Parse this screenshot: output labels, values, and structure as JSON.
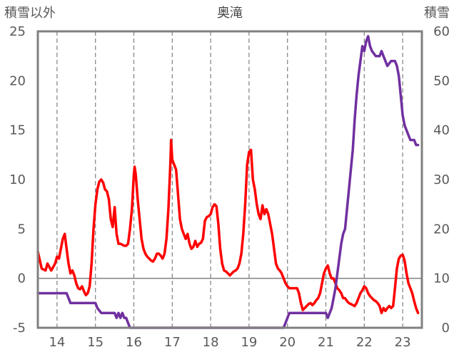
{
  "chart_data": {
    "type": "line",
    "title": "奥滝",
    "left_axis_label": "積雪以外",
    "right_axis_label": "積雪",
    "left_ylim": [
      -5,
      25
    ],
    "left_ticks": [
      "25",
      "20",
      "15",
      "10",
      "5",
      "0",
      "-5"
    ],
    "right_ylim": [
      0,
      60
    ],
    "right_ticks": [
      "60",
      "50",
      "40",
      "30",
      "20",
      "10",
      "0"
    ],
    "xlim": [
      13.5,
      23.5
    ],
    "x_tick_labels": [
      "14",
      "15",
      "16",
      "17",
      "18",
      "19",
      "20",
      "21",
      "22",
      "23"
    ],
    "grid": "vertical dashed at each day",
    "zero_line": 0,
    "colors": {
      "series1": "#ff0000",
      "series2": "#7030a0",
      "frame": "#808080",
      "grid": "#7f7f7f"
    },
    "series": [
      {
        "axis": "left",
        "color": "#ff0000",
        "points": [
          [
            13.5,
            2.7
          ],
          [
            13.6,
            1.0
          ],
          [
            13.7,
            0.8
          ],
          [
            13.75,
            1.5
          ],
          [
            13.85,
            0.8
          ],
          [
            13.95,
            1.5
          ],
          [
            14.0,
            2.2
          ],
          [
            14.05,
            2.0
          ],
          [
            14.1,
            3.0
          ],
          [
            14.15,
            4.0
          ],
          [
            14.2,
            4.5
          ],
          [
            14.25,
            3.0
          ],
          [
            14.3,
            1.5
          ],
          [
            14.35,
            0.5
          ],
          [
            14.4,
            0.8
          ],
          [
            14.45,
            0.3
          ],
          [
            14.5,
            -0.5
          ],
          [
            14.55,
            -1.0
          ],
          [
            14.6,
            -1.1
          ],
          [
            14.65,
            -0.8
          ],
          [
            14.7,
            -1.3
          ],
          [
            14.75,
            -1.7
          ],
          [
            14.8,
            -1.5
          ],
          [
            14.85,
            -0.8
          ],
          [
            14.9,
            1.5
          ],
          [
            14.95,
            5.0
          ],
          [
            15.0,
            7.5
          ],
          [
            15.05,
            9.0
          ],
          [
            15.1,
            9.8
          ],
          [
            15.15,
            10.0
          ],
          [
            15.2,
            9.7
          ],
          [
            15.25,
            9.0
          ],
          [
            15.3,
            8.8
          ],
          [
            15.35,
            8.0
          ],
          [
            15.4,
            6.0
          ],
          [
            15.45,
            5.2
          ],
          [
            15.5,
            7.2
          ],
          [
            15.55,
            4.5
          ],
          [
            15.6,
            3.5
          ],
          [
            15.65,
            3.5
          ],
          [
            15.7,
            3.4
          ],
          [
            15.75,
            3.3
          ],
          [
            15.8,
            3.3
          ],
          [
            15.85,
            3.5
          ],
          [
            15.9,
            5.0
          ],
          [
            15.95,
            7.0
          ],
          [
            16.0,
            10.5
          ],
          [
            16.02,
            11.3
          ],
          [
            16.05,
            10.5
          ],
          [
            16.1,
            8.0
          ],
          [
            16.15,
            6.0
          ],
          [
            16.2,
            4.0
          ],
          [
            16.25,
            3.0
          ],
          [
            16.3,
            2.5
          ],
          [
            16.35,
            2.2
          ],
          [
            16.4,
            2.0
          ],
          [
            16.45,
            1.8
          ],
          [
            16.5,
            1.7
          ],
          [
            16.55,
            2.0
          ],
          [
            16.6,
            2.5
          ],
          [
            16.65,
            2.5
          ],
          [
            16.7,
            2.3
          ],
          [
            16.75,
            2.0
          ],
          [
            16.8,
            2.5
          ],
          [
            16.85,
            4.0
          ],
          [
            16.9,
            7.0
          ],
          [
            16.95,
            11.5
          ],
          [
            16.97,
            14.0
          ],
          [
            17.0,
            12.0
          ],
          [
            17.05,
            11.5
          ],
          [
            17.1,
            11.0
          ],
          [
            17.15,
            8.5
          ],
          [
            17.2,
            6.0
          ],
          [
            17.25,
            5.0
          ],
          [
            17.3,
            4.5
          ],
          [
            17.35,
            4.0
          ],
          [
            17.4,
            4.5
          ],
          [
            17.45,
            3.5
          ],
          [
            17.5,
            3.0
          ],
          [
            17.55,
            3.2
          ],
          [
            17.6,
            3.8
          ],
          [
            17.65,
            3.2
          ],
          [
            17.7,
            3.5
          ],
          [
            17.75,
            3.6
          ],
          [
            17.8,
            4.0
          ],
          [
            17.85,
            5.8
          ],
          [
            17.9,
            6.2
          ],
          [
            17.95,
            6.3
          ],
          [
            18.0,
            6.5
          ],
          [
            18.05,
            7.2
          ],
          [
            18.1,
            7.5
          ],
          [
            18.15,
            7.3
          ],
          [
            18.2,
            5.5
          ],
          [
            18.25,
            3.0
          ],
          [
            18.3,
            1.5
          ],
          [
            18.35,
            0.8
          ],
          [
            18.4,
            0.7
          ],
          [
            18.45,
            0.5
          ],
          [
            18.5,
            0.3
          ],
          [
            18.55,
            0.5
          ],
          [
            18.6,
            0.7
          ],
          [
            18.65,
            0.8
          ],
          [
            18.7,
            1.0
          ],
          [
            18.75,
            1.5
          ],
          [
            18.8,
            2.5
          ],
          [
            18.85,
            4.5
          ],
          [
            18.9,
            7.5
          ],
          [
            18.95,
            11.5
          ],
          [
            19.0,
            12.8
          ],
          [
            19.05,
            13.0
          ],
          [
            19.1,
            10.0
          ],
          [
            19.15,
            9.0
          ],
          [
            19.2,
            7.5
          ],
          [
            19.25,
            6.5
          ],
          [
            19.3,
            6.0
          ],
          [
            19.35,
            7.4
          ],
          [
            19.4,
            6.5
          ],
          [
            19.45,
            7.0
          ],
          [
            19.5,
            6.5
          ],
          [
            19.55,
            5.5
          ],
          [
            19.6,
            4.5
          ],
          [
            19.65,
            3.0
          ],
          [
            19.7,
            1.5
          ],
          [
            19.75,
            1.0
          ],
          [
            19.8,
            0.8
          ],
          [
            19.85,
            0.5
          ],
          [
            19.9,
            0.0
          ],
          [
            19.95,
            -0.5
          ],
          [
            20.0,
            -0.8
          ],
          [
            20.05,
            -1.0
          ],
          [
            20.15,
            -1.0
          ],
          [
            20.25,
            -1.0
          ],
          [
            20.3,
            -1.5
          ],
          [
            20.35,
            -2.5
          ],
          [
            20.4,
            -3.2
          ],
          [
            20.45,
            -3.0
          ],
          [
            20.5,
            -2.8
          ],
          [
            20.55,
            -2.6
          ],
          [
            20.6,
            -2.5
          ],
          [
            20.65,
            -2.7
          ],
          [
            20.7,
            -2.5
          ],
          [
            20.75,
            -2.2
          ],
          [
            20.8,
            -2.0
          ],
          [
            20.85,
            -1.5
          ],
          [
            20.9,
            -0.5
          ],
          [
            20.95,
            0.5
          ],
          [
            21.0,
            1.0
          ],
          [
            21.05,
            1.3
          ],
          [
            21.1,
            0.5
          ],
          [
            21.15,
            0.0
          ],
          [
            21.2,
            0.0
          ],
          [
            21.25,
            -0.5
          ],
          [
            21.3,
            -1.0
          ],
          [
            21.35,
            -1.2
          ],
          [
            21.4,
            -1.5
          ],
          [
            21.45,
            -2.0
          ],
          [
            21.5,
            -2.0
          ],
          [
            21.55,
            -2.3
          ],
          [
            21.6,
            -2.5
          ],
          [
            21.7,
            -2.7
          ],
          [
            21.75,
            -2.8
          ],
          [
            21.8,
            -2.5
          ],
          [
            21.85,
            -2.0
          ],
          [
            21.9,
            -1.5
          ],
          [
            21.95,
            -1.2
          ],
          [
            22.0,
            -0.8
          ],
          [
            22.05,
            -1.0
          ],
          [
            22.1,
            -1.5
          ],
          [
            22.15,
            -1.8
          ],
          [
            22.2,
            -2.0
          ],
          [
            22.25,
            -2.2
          ],
          [
            22.3,
            -2.3
          ],
          [
            22.35,
            -2.5
          ],
          [
            22.4,
            -2.8
          ],
          [
            22.45,
            -3.5
          ],
          [
            22.5,
            -3.0
          ],
          [
            22.55,
            -3.3
          ],
          [
            22.6,
            -3.0
          ],
          [
            22.65,
            -2.8
          ],
          [
            22.7,
            -3.0
          ],
          [
            22.75,
            -2.8
          ],
          [
            22.8,
            -1.0
          ],
          [
            22.85,
            1.0
          ],
          [
            22.9,
            2.0
          ],
          [
            22.95,
            2.3
          ],
          [
            23.0,
            2.4
          ],
          [
            23.05,
            1.8
          ],
          [
            23.1,
            0.5
          ],
          [
            23.15,
            -0.5
          ],
          [
            23.2,
            -1.0
          ],
          [
            23.25,
            -1.5
          ],
          [
            23.3,
            -2.3
          ],
          [
            23.35,
            -3.0
          ],
          [
            23.4,
            -3.5
          ]
        ]
      },
      {
        "axis": "right",
        "color": "#7030a0",
        "points": [
          [
            13.5,
            7
          ],
          [
            14.0,
            7
          ],
          [
            14.25,
            7
          ],
          [
            14.3,
            6
          ],
          [
            14.35,
            5
          ],
          [
            14.75,
            5
          ],
          [
            14.8,
            5
          ],
          [
            15.0,
            5
          ],
          [
            15.05,
            4
          ],
          [
            15.15,
            3
          ],
          [
            15.3,
            3
          ],
          [
            15.5,
            3
          ],
          [
            15.55,
            2
          ],
          [
            15.6,
            3
          ],
          [
            15.65,
            2
          ],
          [
            15.7,
            3
          ],
          [
            15.75,
            2
          ],
          [
            15.8,
            2
          ],
          [
            15.85,
            1
          ],
          [
            15.9,
            0
          ],
          [
            16.0,
            0
          ],
          [
            17.0,
            0
          ],
          [
            18.0,
            0
          ],
          [
            19.0,
            0
          ],
          [
            19.9,
            0
          ],
          [
            19.95,
            1
          ],
          [
            20.0,
            2
          ],
          [
            20.05,
            3
          ],
          [
            20.1,
            3
          ],
          [
            20.5,
            3
          ],
          [
            20.75,
            3
          ],
          [
            21.0,
            3
          ],
          [
            21.05,
            2
          ],
          [
            21.1,
            3
          ],
          [
            21.15,
            4
          ],
          [
            21.2,
            6
          ],
          [
            21.25,
            8
          ],
          [
            21.3,
            11
          ],
          [
            21.35,
            14
          ],
          [
            21.4,
            17
          ],
          [
            21.45,
            19
          ],
          [
            21.5,
            20
          ],
          [
            21.55,
            24
          ],
          [
            21.6,
            28
          ],
          [
            21.65,
            32
          ],
          [
            21.7,
            36
          ],
          [
            21.75,
            42
          ],
          [
            21.8,
            47
          ],
          [
            21.85,
            51
          ],
          [
            21.9,
            54
          ],
          [
            21.95,
            57
          ],
          [
            22.0,
            56
          ],
          [
            22.05,
            58
          ],
          [
            22.1,
            59
          ],
          [
            22.15,
            57
          ],
          [
            22.2,
            56
          ],
          [
            22.3,
            55
          ],
          [
            22.4,
            55
          ],
          [
            22.45,
            56
          ],
          [
            22.5,
            55
          ],
          [
            22.55,
            54
          ],
          [
            22.6,
            53
          ],
          [
            22.7,
            54
          ],
          [
            22.8,
            54
          ],
          [
            22.85,
            53
          ],
          [
            22.9,
            51
          ],
          [
            22.95,
            47
          ],
          [
            23.0,
            43
          ],
          [
            23.05,
            41
          ],
          [
            23.1,
            40
          ],
          [
            23.15,
            39
          ],
          [
            23.2,
            38
          ],
          [
            23.3,
            38
          ],
          [
            23.35,
            37
          ],
          [
            23.4,
            37
          ]
        ]
      }
    ]
  }
}
